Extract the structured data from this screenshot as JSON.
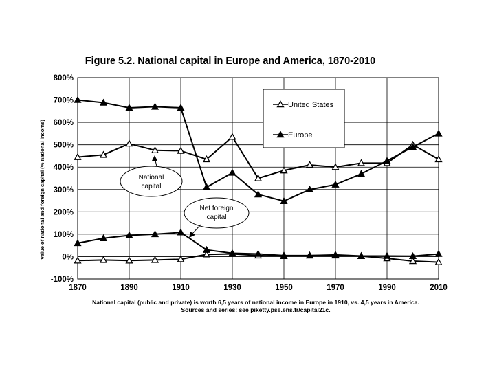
{
  "chart_data": {
    "type": "line",
    "title": "Figure 5.2. National capital in Europe and America, 1870-2010",
    "ylabel": "Value of national and foreign capital (% national income)",
    "xlabel": "",
    "x": [
      1870,
      1880,
      1890,
      1900,
      1910,
      1920,
      1930,
      1940,
      1950,
      1960,
      1970,
      1980,
      1990,
      2000,
      2010
    ],
    "xlim": [
      1870,
      2010
    ],
    "ylim": [
      -100,
      800
    ],
    "x_ticks": [
      1870,
      1890,
      1910,
      1930,
      1950,
      1970,
      1990,
      2010
    ],
    "x_tick_labels": [
      "1870",
      "1890",
      "1910",
      "1930",
      "1950",
      "1970",
      "1990",
      "2010"
    ],
    "y_ticks": [
      -100,
      0,
      100,
      200,
      300,
      400,
      500,
      600,
      700,
      800
    ],
    "y_tick_labels": [
      "-100%",
      "0%",
      "100%",
      "200%",
      "300%",
      "400%",
      "500%",
      "600%",
      "700%",
      "800%"
    ],
    "grid": true,
    "legend_position": "top-right",
    "series": [
      {
        "name": "United States",
        "group": "National capital",
        "marker": "open-triangle",
        "values": [
          445,
          455,
          505,
          475,
          473,
          435,
          535,
          350,
          385,
          410,
          400,
          418,
          418,
          500,
          435
        ]
      },
      {
        "name": "Europe",
        "group": "National capital",
        "marker": "filled-triangle",
        "values": [
          700,
          688,
          665,
          670,
          665,
          310,
          375,
          278,
          248,
          300,
          322,
          370,
          428,
          490,
          550
        ]
      },
      {
        "name": "United States",
        "group": "Net foreign capital",
        "marker": "open-triangle",
        "values": [
          -18,
          -15,
          -18,
          -15,
          -12,
          10,
          12,
          5,
          2,
          5,
          5,
          2,
          -8,
          -20,
          -25
        ]
      },
      {
        "name": "Europe",
        "group": "Net foreign capital",
        "marker": "filled-triangle",
        "values": [
          60,
          82,
          95,
          100,
          108,
          30,
          15,
          12,
          5,
          5,
          8,
          3,
          3,
          2,
          12
        ]
      }
    ],
    "annotations": [
      {
        "text_lines": [
          "National",
          "capital"
        ]
      },
      {
        "text_lines": [
          "Net foreign",
          "capital"
        ]
      }
    ],
    "captions": [
      "National capital (public and private) is worth 6,5 years of national income in Europe in 1910, vs. 4,5 years in America.",
      "Sources and series: see piketty.pse.ens.fr/capital21c."
    ],
    "colors": {
      "line": "#000000",
      "grid": "#000000",
      "background": "#ffffff"
    }
  }
}
